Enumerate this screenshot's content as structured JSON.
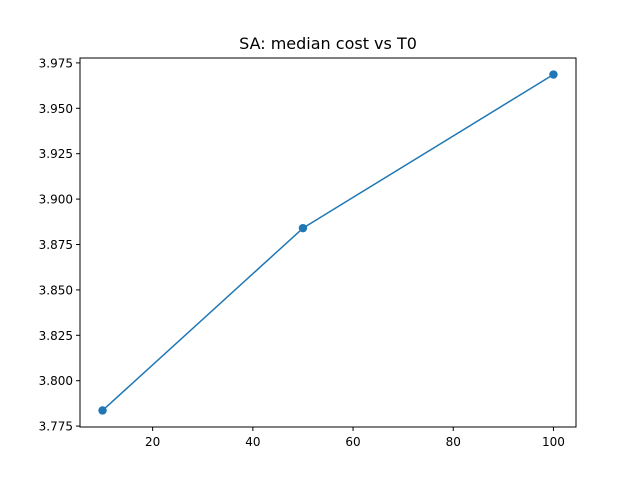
{
  "chart_data": {
    "type": "line",
    "title": "SA: median cost vs T0",
    "xlabel": "",
    "ylabel": "",
    "xlim": [
      5.5,
      104.5
    ],
    "ylim": [
      3.7745,
      3.9777
    ],
    "x_ticks": [
      20,
      40,
      60,
      80,
      100
    ],
    "x_tick_labels": [
      "20",
      "40",
      "60",
      "80",
      "100"
    ],
    "y_ticks": [
      3.775,
      3.8,
      3.825,
      3.85,
      3.875,
      3.9,
      3.925,
      3.95,
      3.975
    ],
    "y_tick_labels": [
      "3.775",
      "3.800",
      "3.825",
      "3.850",
      "3.875",
      "3.900",
      "3.925",
      "3.950",
      "3.975"
    ],
    "grid": false,
    "series": [
      {
        "x": [
          10,
          50,
          100
        ],
        "values": [
          3.7836,
          3.884,
          3.9686
        ],
        "color": "#1f77b4",
        "marker": "circle"
      }
    ]
  }
}
